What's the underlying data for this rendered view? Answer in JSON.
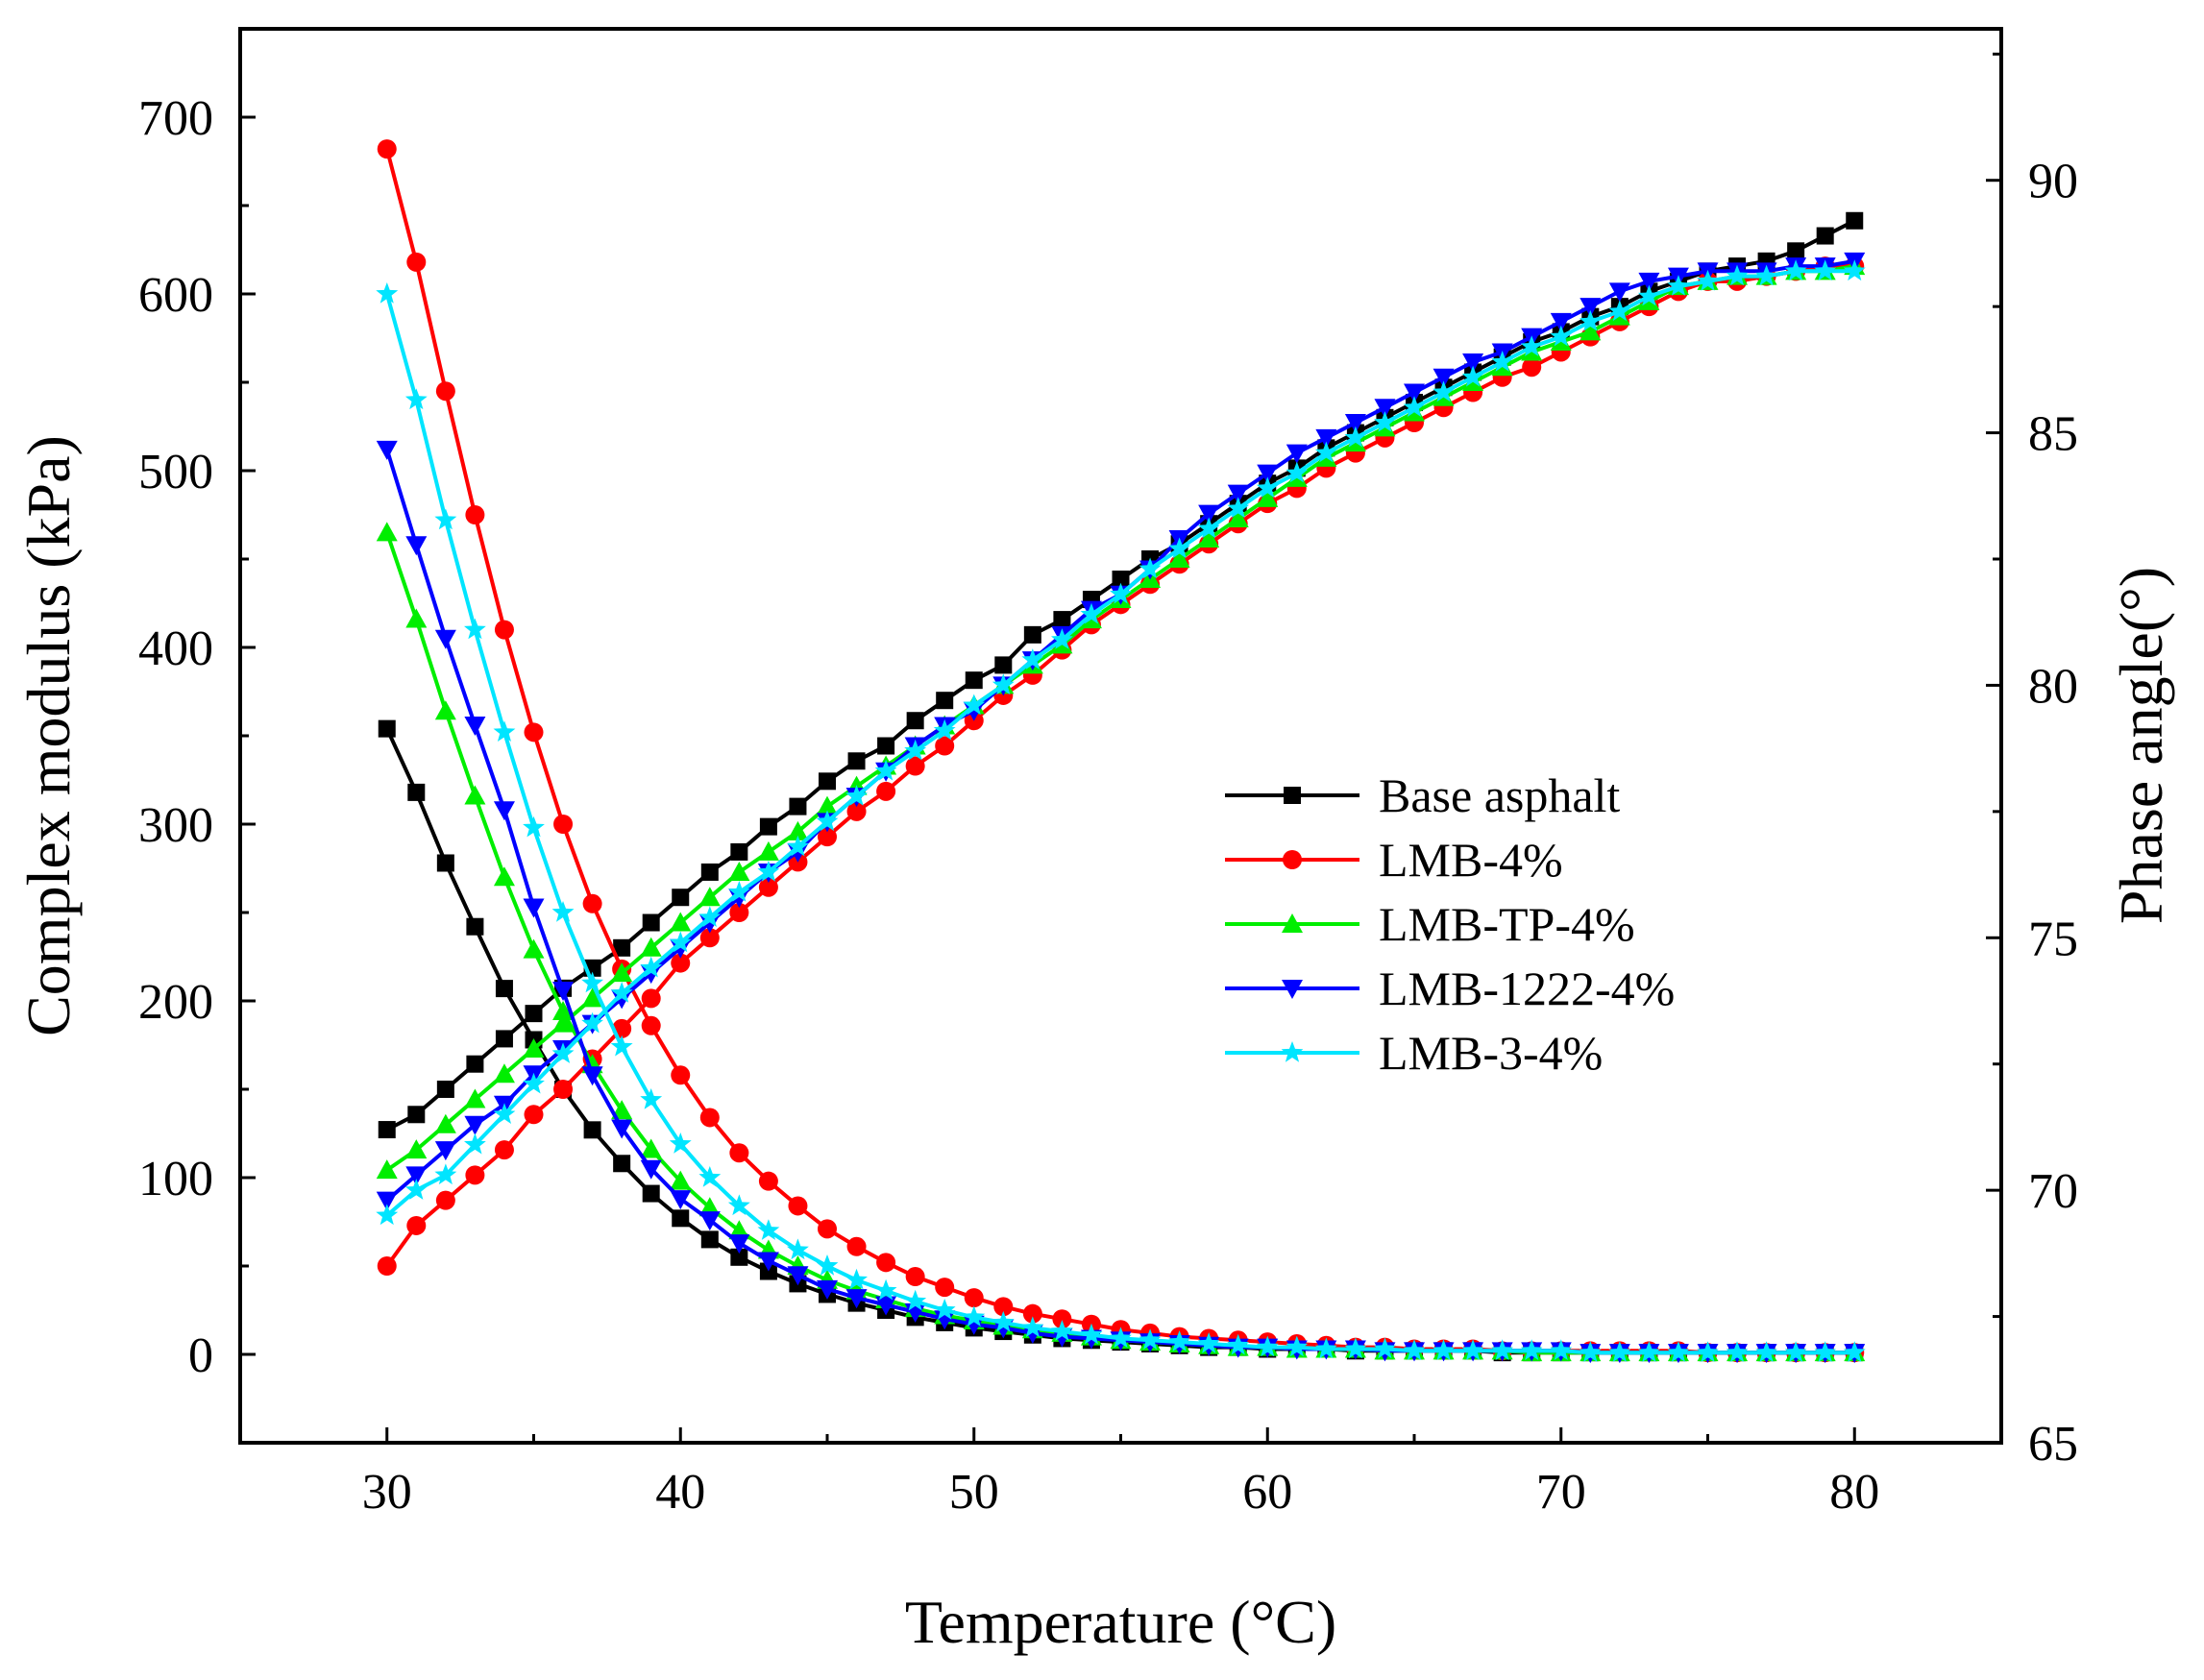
{
  "chart_data": {
    "type": "line",
    "xlabel": "Temperature (°C)",
    "ylabel": "Complex modulus (kPa)",
    "y2label": "Phase angle(°)",
    "xlim": [
      25,
      85
    ],
    "ylim": [
      -50,
      750
    ],
    "y2lim": [
      65,
      93
    ],
    "xticks": [
      30,
      40,
      50,
      60,
      70,
      80
    ],
    "yticks": [
      0,
      100,
      200,
      300,
      400,
      500,
      600,
      700
    ],
    "y2ticks": [
      65,
      70,
      75,
      80,
      85,
      90
    ],
    "grid": false,
    "legend_position": "center-right",
    "x": [
      30,
      31,
      32,
      33,
      34,
      35,
      36,
      37,
      38,
      39,
      40,
      41,
      42,
      43,
      44,
      45,
      46,
      47,
      48,
      49,
      50,
      51,
      52,
      53,
      54,
      55,
      56,
      57,
      58,
      59,
      60,
      61,
      62,
      63,
      64,
      65,
      66,
      67,
      68,
      69,
      70,
      71,
      72,
      73,
      74,
      75,
      76,
      77,
      78,
      79,
      80
    ],
    "series": [
      {
        "name": "Base asphalt",
        "color": "#000000",
        "marker": "square",
        "modulus": [
          354,
          318,
          278,
          242,
          207,
          178,
          150,
          127,
          108,
          91,
          77,
          65,
          55,
          47,
          40,
          34,
          29,
          25,
          21,
          18,
          15,
          13,
          11,
          9,
          8,
          7,
          6,
          5,
          4,
          4,
          3,
          3,
          3,
          2,
          2,
          2,
          2,
          2,
          1,
          1,
          1,
          1,
          1,
          1,
          1,
          1,
          1,
          1,
          1,
          1,
          1
        ],
        "phase": [
          71.2,
          71.5,
          72.0,
          72.5,
          73.0,
          73.5,
          74.0,
          74.4,
          74.8,
          75.3,
          75.8,
          76.3,
          76.7,
          77.2,
          77.6,
          78.1,
          78.5,
          78.8,
          79.3,
          79.7,
          80.1,
          80.4,
          81.0,
          81.3,
          81.7,
          82.1,
          82.5,
          82.8,
          83.2,
          83.6,
          84.0,
          84.3,
          84.7,
          85.0,
          85.3,
          85.6,
          85.9,
          86.2,
          86.5,
          86.8,
          87.0,
          87.3,
          87.5,
          87.8,
          88.0,
          88.2,
          88.3,
          88.4,
          88.6,
          88.9,
          89.2
        ]
      },
      {
        "name": "LMB-4%",
        "color": "#ff0000",
        "marker": "circle",
        "modulus": [
          682,
          618,
          545,
          475,
          410,
          352,
          300,
          255,
          218,
          186,
          158,
          134,
          114,
          98,
          84,
          71,
          61,
          52,
          44,
          38,
          32,
          27,
          23,
          20,
          17,
          14,
          12,
          10,
          9,
          8,
          7,
          6,
          5,
          4,
          4,
          3,
          3,
          3,
          2,
          2,
          2,
          2,
          2,
          2,
          2,
          1,
          1,
          1,
          1,
          1,
          1
        ],
        "phase": [
          68.5,
          69.3,
          69.8,
          70.3,
          70.8,
          71.5,
          72.0,
          72.6,
          73.2,
          73.8,
          74.5,
          75.0,
          75.5,
          76.0,
          76.5,
          77.0,
          77.5,
          77.9,
          78.4,
          78.8,
          79.3,
          79.8,
          80.2,
          80.7,
          81.2,
          81.6,
          82.0,
          82.4,
          82.8,
          83.2,
          83.6,
          83.9,
          84.3,
          84.6,
          84.9,
          85.2,
          85.5,
          85.8,
          86.1,
          86.3,
          86.6,
          86.9,
          87.2,
          87.5,
          87.8,
          88.0,
          88.0,
          88.1,
          88.2,
          88.3,
          88.3
        ]
      },
      {
        "name": "LMB-TP-4%",
        "color": "#00ee00",
        "marker": "triangle-up",
        "modulus": [
          465,
          416,
          364,
          316,
          270,
          229,
          194,
          164,
          138,
          116,
          98,
          83,
          70,
          59,
          50,
          42,
          36,
          31,
          26,
          22,
          19,
          16,
          14,
          12,
          10,
          8,
          7,
          6,
          5,
          4,
          4,
          3,
          3,
          3,
          2,
          2,
          2,
          2,
          2,
          1,
          1,
          1,
          1,
          1,
          1,
          1,
          1,
          1,
          1,
          1,
          1
        ],
        "phase": [
          70.4,
          70.8,
          71.3,
          71.8,
          72.3,
          72.8,
          73.3,
          73.8,
          74.3,
          74.8,
          75.3,
          75.8,
          76.3,
          76.7,
          77.1,
          77.6,
          78.0,
          78.4,
          78.8,
          79.2,
          79.6,
          80.0,
          80.4,
          80.8,
          81.3,
          81.7,
          82.1,
          82.5,
          82.9,
          83.3,
          83.7,
          84.1,
          84.5,
          84.8,
          85.1,
          85.4,
          85.7,
          86.0,
          86.3,
          86.6,
          86.8,
          87.0,
          87.3,
          87.6,
          87.9,
          88.0,
          88.1,
          88.1,
          88.2,
          88.2,
          88.3
        ]
      },
      {
        "name": "LMB-1222-4%",
        "color": "#0000ff",
        "marker": "triangle-down",
        "modulus": [
          512,
          458,
          405,
          356,
          308,
          253,
          206,
          158,
          128,
          105,
          88,
          76,
          63,
          53,
          45,
          37,
          32,
          28,
          24,
          20,
          17,
          15,
          12,
          10,
          9,
          8,
          7,
          6,
          5,
          4,
          4,
          3,
          3,
          3,
          2,
          2,
          2,
          2,
          2,
          2,
          2,
          1,
          1,
          1,
          1,
          1,
          1,
          1,
          1,
          1,
          1
        ],
        "phase": [
          69.8,
          70.3,
          70.8,
          71.3,
          71.7,
          72.3,
          72.8,
          73.3,
          73.8,
          74.3,
          74.8,
          75.3,
          75.8,
          76.3,
          76.7,
          77.3,
          77.8,
          78.3,
          78.8,
          79.2,
          79.5,
          80.0,
          80.5,
          81.0,
          81.5,
          81.8,
          82.3,
          82.9,
          83.4,
          83.8,
          84.2,
          84.6,
          84.9,
          85.2,
          85.5,
          85.8,
          86.1,
          86.4,
          86.6,
          86.9,
          87.2,
          87.5,
          87.8,
          88.0,
          88.1,
          88.2,
          88.2,
          88.2,
          88.3,
          88.3,
          88.4
        ]
      },
      {
        "name": "LMB-3-4%",
        "color": "#00e5ff",
        "marker": "star",
        "modulus": [
          600,
          540,
          472,
          410,
          352,
          298,
          250,
          210,
          174,
          144,
          119,
          100,
          84,
          70,
          59,
          50,
          42,
          36,
          30,
          25,
          21,
          18,
          15,
          13,
          11,
          9,
          8,
          7,
          6,
          5,
          4,
          4,
          3,
          3,
          3,
          2,
          2,
          2,
          2,
          2,
          2,
          1,
          1,
          1,
          1,
          1,
          1,
          1,
          1,
          1,
          1
        ],
        "phase": [
          69.5,
          70.0,
          70.3,
          70.9,
          71.5,
          72.1,
          72.7,
          73.3,
          73.9,
          74.4,
          74.9,
          75.4,
          75.9,
          76.3,
          76.8,
          77.3,
          77.8,
          78.3,
          78.7,
          79.1,
          79.6,
          80.0,
          80.5,
          80.9,
          81.4,
          81.8,
          82.3,
          82.7,
          83.1,
          83.5,
          83.9,
          84.2,
          84.6,
          84.9,
          85.2,
          85.5,
          85.8,
          86.1,
          86.4,
          86.7,
          86.9,
          87.2,
          87.4,
          87.7,
          87.9,
          88.0,
          88.1,
          88.1,
          88.2,
          88.2,
          88.2
        ]
      }
    ]
  }
}
